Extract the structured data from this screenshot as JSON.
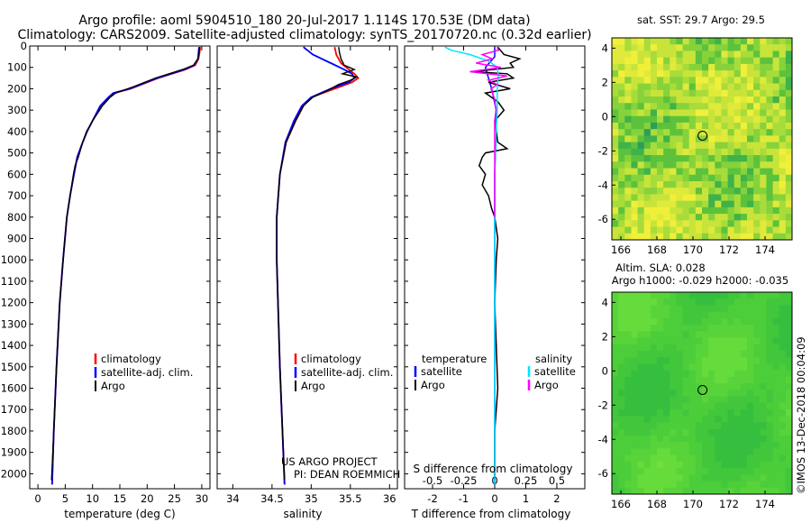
{
  "title_line1": "Argo profile: aoml 5904510_180 20-Jul-2017 1.114S 170.53E (DM data)",
  "title_line2": "Climatology: CARS2009. Satellite-adjusted climatology: synTS_20170720.nc (0.32d earlier)",
  "credit_line1": "US ARGO PROJECT",
  "credit_line2": "PI: DEAN ROEMMICH",
  "imos_stamp": "©IMOS 13-Dec-2018 00:04:09",
  "colors": {
    "climatology": "#ff0000",
    "satellite": "#0000ff",
    "argo": "#000000",
    "sat_salinity": "#00e5ff",
    "argo_salinity": "#ff00ff"
  },
  "chart_data": [
    {
      "type": "line",
      "title": "",
      "xlabel": "temperature (deg C)",
      "ylabel": "",
      "xlim": [
        -1.5,
        31.5
      ],
      "ylim": [
        2070,
        0
      ],
      "x_ticks": [
        0,
        5,
        10,
        15,
        20,
        25,
        30
      ],
      "x_tick_labels": [
        "0",
        "5",
        "10",
        "15",
        "20",
        "25",
        "30"
      ],
      "y_ticks": [
        0,
        100,
        200,
        300,
        400,
        500,
        600,
        700,
        800,
        900,
        1000,
        1100,
        1200,
        1300,
        1400,
        1500,
        1600,
        1700,
        1800,
        1900,
        2000
      ],
      "y_tick_labels": [
        "0",
        "100",
        "200",
        "300",
        "400",
        "500",
        "600",
        "700",
        "800",
        "900",
        "1000",
        "1100",
        "1200",
        "1300",
        "1400",
        "1500",
        "1600",
        "1700",
        "1800",
        "1900",
        "2000"
      ],
      "legend": [
        "climatology",
        "satellite-adj. clim.",
        "Argo"
      ],
      "series": [
        {
          "name": "climatology",
          "depth": [
            5,
            30,
            60,
            90,
            110,
            150,
            200,
            220,
            240,
            280,
            350,
            400,
            450,
            520,
            600,
            700,
            800,
            1000,
            1200,
            1500,
            1800,
            2050
          ],
          "values": [
            29.7,
            29.6,
            29.4,
            28.8,
            27.0,
            22.0,
            17.0,
            14.0,
            13.0,
            11.5,
            10.0,
            9.0,
            8.2,
            7.2,
            6.6,
            5.9,
            5.3,
            4.6,
            4.0,
            3.4,
            2.9,
            2.6
          ]
        },
        {
          "name": "satellite-adj. clim.",
          "depth": [
            5,
            30,
            60,
            90,
            110,
            150,
            200,
            220,
            240,
            280,
            350,
            400,
            450,
            520,
            600,
            700,
            800,
            1000,
            1200,
            1500,
            1800,
            2050
          ],
          "values": [
            29.5,
            29.4,
            29.3,
            28.6,
            26.8,
            21.8,
            16.8,
            13.8,
            12.9,
            11.4,
            10.0,
            9.0,
            8.2,
            7.2,
            6.6,
            5.9,
            5.3,
            4.6,
            4.0,
            3.4,
            2.9,
            2.6
          ]
        },
        {
          "name": "Argo",
          "depth": [
            5,
            30,
            60,
            90,
            110,
            150,
            190,
            220,
            240,
            280,
            350,
            400,
            450,
            520,
            560,
            600,
            700,
            800,
            1000,
            1200,
            1500,
            1800,
            2030
          ],
          "values": [
            29.6,
            29.5,
            29.3,
            28.5,
            26.5,
            21.5,
            17.5,
            14.2,
            13.2,
            11.8,
            10.0,
            8.9,
            8.2,
            7.4,
            6.8,
            6.5,
            5.9,
            5.3,
            4.6,
            4.0,
            3.4,
            2.9,
            2.5
          ]
        }
      ]
    },
    {
      "type": "line",
      "title": "",
      "xlabel": "salinity",
      "xlim": [
        33.8,
        36.1
      ],
      "ylim": [
        2070,
        0
      ],
      "x_ticks": [
        34,
        34.5,
        35,
        35.5,
        36
      ],
      "x_tick_labels": [
        "34",
        "34.5",
        "35",
        "35.5",
        "36"
      ],
      "legend": [
        "climatology",
        "satellite-adj. clim.",
        "Argo"
      ],
      "series": [
        {
          "name": "climatology",
          "depth": [
            5,
            40,
            80,
            110,
            130,
            150,
            170,
            200,
            240,
            280,
            350,
            450,
            600,
            800,
            1000,
            1500,
            2050
          ],
          "values": [
            35.3,
            35.32,
            35.38,
            35.48,
            35.55,
            35.6,
            35.52,
            35.3,
            35.0,
            34.9,
            34.8,
            34.68,
            34.6,
            34.56,
            34.56,
            34.6,
            34.66
          ]
        },
        {
          "name": "satellite-adj. clim.",
          "depth": [
            5,
            40,
            80,
            110,
            130,
            150,
            170,
            200,
            240,
            280,
            350,
            450,
            600,
            800,
            1000,
            1500,
            2050
          ],
          "values": [
            34.9,
            35.02,
            35.25,
            35.42,
            35.52,
            35.55,
            35.48,
            35.25,
            35.0,
            34.88,
            34.78,
            34.67,
            34.6,
            34.56,
            34.56,
            34.6,
            34.66
          ]
        },
        {
          "name": "Argo",
          "depth": [
            5,
            30,
            60,
            90,
            110,
            130,
            145,
            160,
            180,
            210,
            240,
            280,
            350,
            450,
            600,
            800,
            1000,
            1500,
            2030
          ],
          "values": [
            35.35,
            35.36,
            35.38,
            35.42,
            35.55,
            35.4,
            35.58,
            35.5,
            35.35,
            35.2,
            35.02,
            34.9,
            34.8,
            34.68,
            34.6,
            34.56,
            34.56,
            34.6,
            34.66
          ]
        }
      ]
    },
    {
      "type": "line",
      "title": "",
      "xlabel": "T difference from climatology",
      "secondary_xlabel": "S difference from climatology",
      "xlim": [
        -2.9,
        2.9
      ],
      "ylim": [
        2070,
        0
      ],
      "x_ticks": [
        -2,
        -1,
        0,
        1,
        2
      ],
      "x_tick_labels": [
        "-2",
        "-1",
        "0",
        "1",
        "2"
      ],
      "s_ticks": [
        -0.5,
        -0.25,
        0,
        0.25,
        0.5
      ],
      "s_tick_labels": [
        "-0.5",
        "-0.25",
        "0",
        "0.25",
        "0.5"
      ],
      "legend_temperature_header": "temperature",
      "legend_salinity_header": "salinity",
      "legend_temperature": [
        "satellite",
        "Argo"
      ],
      "legend_salinity": [
        "satellite",
        "Argo"
      ],
      "series": [
        {
          "name": "temperature satellite",
          "depth": [
            5,
            50,
            100,
            150,
            200,
            300,
            400,
            600,
            800,
            1000,
            1500,
            2050
          ],
          "values": [
            0.0,
            0.0,
            -0.3,
            -0.2,
            -0.1,
            0.05,
            0.05,
            0.0,
            0.0,
            0.0,
            0.0,
            0.0
          ]
        },
        {
          "name": "temperature Argo",
          "depth": [
            5,
            40,
            60,
            80,
            100,
            120,
            130,
            150,
            170,
            200,
            220,
            260,
            300,
            350,
            400,
            450,
            480,
            500,
            520,
            560,
            600,
            650,
            700,
            760,
            800,
            900,
            1000,
            1200,
            1400,
            1600,
            1800,
            2030
          ],
          "values": [
            0.1,
            0.3,
            0.8,
            0.5,
            0.6,
            -0.7,
            0.4,
            0.6,
            -0.2,
            0.5,
            -0.3,
            0.1,
            0.3,
            0.0,
            0.05,
            0.1,
            0.4,
            -0.3,
            -0.4,
            -0.5,
            -0.3,
            -0.4,
            -0.2,
            -0.1,
            0.0,
            0.1,
            0.05,
            0.0,
            0.05,
            0.1,
            0.0,
            0.0
          ]
        },
        {
          "name": "salinity satellite",
          "depth": [
            5,
            20,
            40,
            70,
            100,
            140,
            200,
            300,
            400,
            600,
            800,
            1000,
            1500,
            2050
          ],
          "values": [
            -0.4,
            -0.35,
            -0.2,
            -0.05,
            0.02,
            0.03,
            0.02,
            0.02,
            0.01,
            0.0,
            0.0,
            0.0,
            0.0,
            0.0
          ]
        },
        {
          "name": "salinity Argo",
          "depth": [
            5,
            20,
            40,
            60,
            80,
            100,
            120,
            140,
            160,
            180,
            200,
            250,
            300,
            350,
            400,
            500,
            600,
            800
          ],
          "values": [
            0.02,
            0.03,
            -0.1,
            -0.02,
            -0.15,
            0.05,
            -0.2,
            0.1,
            -0.05,
            0.02,
            -0.03,
            0.0,
            0.01,
            0.0,
            0.0,
            0.0,
            0.0,
            0.0
          ]
        }
      ]
    },
    {
      "type": "heatmap",
      "title_prefix": "sat. SST: ",
      "sst_value": "29.7",
      "argo_prefix": "Argo: ",
      "argo_value": "29.5",
      "xlim": [
        165.5,
        175.5
      ],
      "ylim": [
        -7.2,
        4.6
      ],
      "x_ticks": [
        166,
        168,
        170,
        172,
        174
      ],
      "x_tick_labels": [
        "166",
        "168",
        "170",
        "172",
        "174"
      ],
      "y_ticks": [
        -6,
        -4,
        -2,
        0,
        2,
        4
      ],
      "y_tick_labels": [
        "-6",
        "-4",
        "-2",
        "0",
        "2",
        "4"
      ],
      "marker_lon": 170.53,
      "marker_lat": -1.114
    },
    {
      "type": "heatmap",
      "title_sla_label": "Altim. SLA: ",
      "sla_value": "0.028",
      "title_h_label": "Argo h1000: ",
      "h1000_value": "-0.029",
      "h2000_label": "h2000: ",
      "h2000_value": "-0.035",
      "xlim": [
        165.5,
        175.5
      ],
      "ylim": [
        -7.2,
        4.6
      ],
      "x_ticks": [
        166,
        168,
        170,
        172,
        174
      ],
      "x_tick_labels": [
        "166",
        "168",
        "170",
        "172",
        "174"
      ],
      "y_ticks": [
        -6,
        -4,
        -2,
        0,
        2,
        4
      ],
      "y_tick_labels": [
        "-6",
        "-4",
        "-2",
        "0",
        "2",
        "4"
      ],
      "marker_lon": 170.53,
      "marker_lat": -1.114
    }
  ]
}
